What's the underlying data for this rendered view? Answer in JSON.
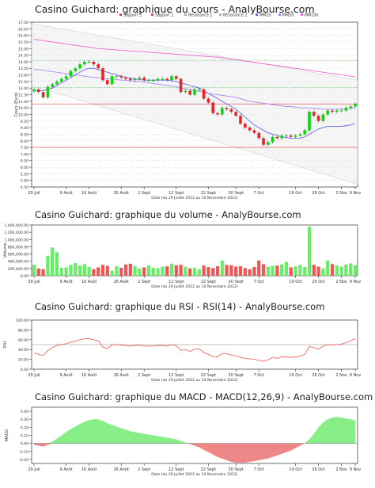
{
  "dates_caption": "Date (du 29 Juillet 2022 au 10 Novembre 2022)",
  "x_ticks": [
    "29 Juil",
    "9 Août",
    "16 Août",
    "26 Août",
    "2 Sept",
    "12 Sept",
    "22 Sept",
    "30 Sept",
    "7 Oct",
    "19 Oct",
    "26 Oct",
    "2 Nov",
    "9 Nov"
  ],
  "colors": {
    "up": "#00dd00",
    "down": "#ee2222",
    "grid": "#dddddd",
    "support": "#dd4444",
    "resistance": "#88cc88",
    "mm20": "#6666ee",
    "mm50": "#aa88ee",
    "mm100": "#ee66cc",
    "volume_up": "#66ee66",
    "volume_down": "#ee5555",
    "rsi": "#ee6666",
    "macd_pos": "#88ee88",
    "macd_neg": "#ee8888"
  },
  "chart_data": [
    {
      "type": "candlestick",
      "title": "Casino Guichard: graphique du cours - AnalyBourse.com",
      "ylabel": "Cours (Euro)",
      "ylim": [
        4.5,
        17.0
      ],
      "yticks": [
        "17.00",
        "16.50",
        "16.00",
        "15.50",
        "15.00",
        "14.50",
        "14.00",
        "13.50",
        "13.00",
        "12.50",
        "12.00",
        "11.50",
        "11.00",
        "10.50",
        "10.00",
        "9.50",
        "9.00",
        "8.50",
        "8.00",
        "7.50",
        "7.00",
        "6.50",
        "6.00",
        "5.50",
        "5.00",
        "4.50"
      ],
      "legend": [
        "Support 1",
        "Support 2",
        "Résistance 1",
        "Résistance 2",
        "MM20",
        "MM50",
        "MM100"
      ],
      "levels": {
        "support_1": 10.8,
        "support_2": 7.5,
        "resistance_1": 14.1,
        "resistance_2": 12.05
      },
      "closes": [
        11.9,
        11.7,
        11.3,
        12.1,
        12.3,
        12.5,
        12.7,
        12.9,
        13.3,
        13.5,
        13.8,
        14.0,
        14.0,
        13.8,
        13.5,
        12.6,
        12.3,
        12.9,
        12.9,
        12.8,
        12.7,
        12.6,
        12.7,
        12.8,
        12.6,
        12.6,
        12.6,
        12.7,
        12.7,
        12.6,
        12.9,
        12.7,
        11.7,
        11.8,
        11.5,
        11.9,
        11.9,
        11.2,
        10.9,
        10.1,
        10.0,
        10.5,
        10.4,
        10.2,
        9.9,
        9.3,
        9.0,
        8.8,
        8.6,
        8.2,
        7.7,
        7.9,
        8.3,
        8.2,
        8.4,
        8.4,
        8.3,
        8.4,
        8.5,
        8.8,
        10.2,
        9.9,
        9.5,
        10.0,
        10.3,
        10.2,
        10.3,
        10.3,
        10.5,
        10.6,
        10.8
      ],
      "mm20": [
        11.8,
        11.8,
        11.8,
        11.9,
        12.0,
        12.2,
        12.4,
        12.6,
        12.8,
        13.0,
        13.2,
        13.4,
        13.5,
        13.5,
        13.4,
        13.3,
        13.2,
        13.1,
        13.0,
        12.9,
        12.8,
        12.75,
        12.7,
        12.65,
        12.6,
        12.6,
        12.6,
        12.6,
        12.6,
        12.6,
        12.55,
        12.5,
        12.4,
        12.3,
        12.2,
        12.1,
        12.0,
        11.8,
        11.6,
        11.4,
        11.2,
        11.0,
        10.8,
        10.6,
        10.4,
        10.1,
        9.8,
        9.5,
        9.2,
        9.0,
        8.8,
        8.6,
        8.5,
        8.4,
        8.3,
        8.25,
        8.2,
        8.2,
        8.2,
        8.3,
        8.5,
        8.7,
        8.9,
        9.0,
        9.1,
        9.1,
        9.1,
        9.1,
        9.15,
        9.2,
        9.3
      ],
      "mm50": [
        13.4,
        13.4,
        13.35,
        13.3,
        13.25,
        13.2,
        13.15,
        13.1,
        13.05,
        13.0,
        12.95,
        12.9,
        12.85,
        12.8,
        12.8,
        12.75,
        12.7,
        12.7,
        12.65,
        12.6,
        12.6,
        12.55,
        12.5,
        12.5,
        12.45,
        12.4,
        12.35,
        12.3,
        12.25,
        12.2,
        12.15,
        12.1,
        12.0,
        11.95,
        11.9,
        11.8,
        11.75,
        11.7,
        11.6,
        11.55,
        11.5,
        11.45,
        11.4,
        11.35,
        11.3,
        11.2,
        11.1,
        11.0,
        10.95,
        10.9,
        10.85,
        10.8,
        10.75,
        10.7,
        10.65,
        10.6,
        10.6,
        10.55,
        10.5,
        10.5,
        10.5,
        10.45,
        10.45,
        10.4,
        10.4,
        10.4,
        10.4,
        10.4,
        10.4,
        10.45,
        10.5
      ],
      "mm100": [
        15.7,
        15.65,
        15.6,
        15.55,
        15.5,
        15.45,
        15.4,
        15.35,
        15.3,
        15.25,
        15.2,
        15.15,
        15.1,
        15.05,
        15.0,
        14.97,
        14.95,
        14.92,
        14.9,
        14.87,
        14.85,
        14.82,
        14.8,
        14.77,
        14.75,
        14.72,
        14.7,
        14.67,
        14.65,
        14.62,
        14.6,
        14.57,
        14.55,
        14.52,
        14.5,
        14.47,
        14.45,
        14.42,
        14.4,
        14.37,
        14.35,
        14.3,
        14.25,
        14.2,
        14.15,
        14.1,
        14.05,
        14.0,
        13.95,
        13.9,
        13.85,
        13.8,
        13.75,
        13.7,
        13.65,
        13.6,
        13.55,
        13.5,
        13.45,
        13.4,
        13.35,
        13.3,
        13.25,
        13.2,
        13.15,
        13.1,
        13.05,
        13.0,
        12.95,
        12.9,
        12.85
      ]
    },
    {
      "type": "bar",
      "title": "Casino Guichard: graphique du volume - AnalyBourse.com",
      "ylabel": "Volume",
      "ylim": [
        0,
        1400000
      ],
      "yticks": [
        "1,400,000.00",
        "1,200,000.00",
        "1,000,000.00",
        "800,000.00",
        "600,000.00",
        "400,000.00",
        "200,000.00",
        "0.00"
      ],
      "values": [
        300000,
        200000,
        180000,
        550000,
        780000,
        650000,
        220000,
        230000,
        300000,
        350000,
        280000,
        320000,
        240000,
        180000,
        230000,
        300000,
        270000,
        140000,
        260000,
        220000,
        310000,
        330000,
        260000,
        200000,
        230000,
        280000,
        220000,
        210000,
        250000,
        260000,
        330000,
        290000,
        300000,
        250000,
        200000,
        220000,
        180000,
        280000,
        240000,
        210000,
        260000,
        420000,
        300000,
        290000,
        250000,
        260000,
        210000,
        180000,
        240000,
        420000,
        320000,
        250000,
        270000,
        280000,
        310000,
        380000,
        230000,
        260000,
        300000,
        240000,
        1350000,
        300000,
        250000,
        200000,
        420000,
        320000,
        280000,
        250000,
        310000,
        340000,
        290000
      ]
    },
    {
      "type": "line",
      "title": "Casino Guichard: graphique du RSI - RSI(14) - AnalyBourse.com",
      "ylabel": "RSI",
      "ylim": [
        0,
        100
      ],
      "yticks": [
        "100.00",
        "80.00",
        "60.00",
        "40.00",
        "20.00",
        "0.00"
      ],
      "reference": 50,
      "values": [
        33,
        30,
        28,
        38,
        44,
        48,
        50,
        52,
        55,
        57,
        60,
        62,
        62,
        60,
        58,
        45,
        42,
        50,
        50,
        49,
        48,
        47,
        48,
        49,
        47,
        47,
        47,
        48,
        48,
        47,
        50,
        48,
        38,
        40,
        36,
        41,
        41,
        34,
        30,
        26,
        25,
        32,
        31,
        29,
        27,
        24,
        22,
        21,
        20,
        18,
        16,
        19,
        24,
        22,
        25,
        25,
        24,
        25,
        27,
        30,
        46,
        44,
        41,
        47,
        50,
        49,
        50,
        51,
        54,
        58,
        62
      ]
    },
    {
      "type": "area",
      "title": "Casino Guichard: graphique du MACD - MACD(12,26,9) - AnalyBourse.com",
      "ylabel": "MACD",
      "ylim": [
        -0.25,
        0.45
      ],
      "yticks": [
        "0.40",
        "0.30",
        "0.20",
        "0.10",
        "0.00",
        "-0.10",
        "-0.20"
      ],
      "values": [
        -0.02,
        -0.03,
        -0.04,
        -0.02,
        0.02,
        0.06,
        0.1,
        0.14,
        0.18,
        0.21,
        0.24,
        0.27,
        0.29,
        0.3,
        0.3,
        0.28,
        0.25,
        0.23,
        0.21,
        0.19,
        0.17,
        0.15,
        0.14,
        0.13,
        0.12,
        0.11,
        0.1,
        0.09,
        0.08,
        0.07,
        0.06,
        0.05,
        0.03,
        0.01,
        -0.01,
        -0.03,
        -0.05,
        -0.08,
        -0.11,
        -0.14,
        -0.17,
        -0.19,
        -0.21,
        -0.23,
        -0.24,
        -0.24,
        -0.24,
        -0.23,
        -0.22,
        -0.21,
        -0.2,
        -0.19,
        -0.17,
        -0.15,
        -0.13,
        -0.11,
        -0.09,
        -0.06,
        -0.03,
        0.0,
        0.05,
        0.12,
        0.2,
        0.26,
        0.3,
        0.32,
        0.33,
        0.32,
        0.31,
        0.3,
        0.29
      ]
    }
  ]
}
